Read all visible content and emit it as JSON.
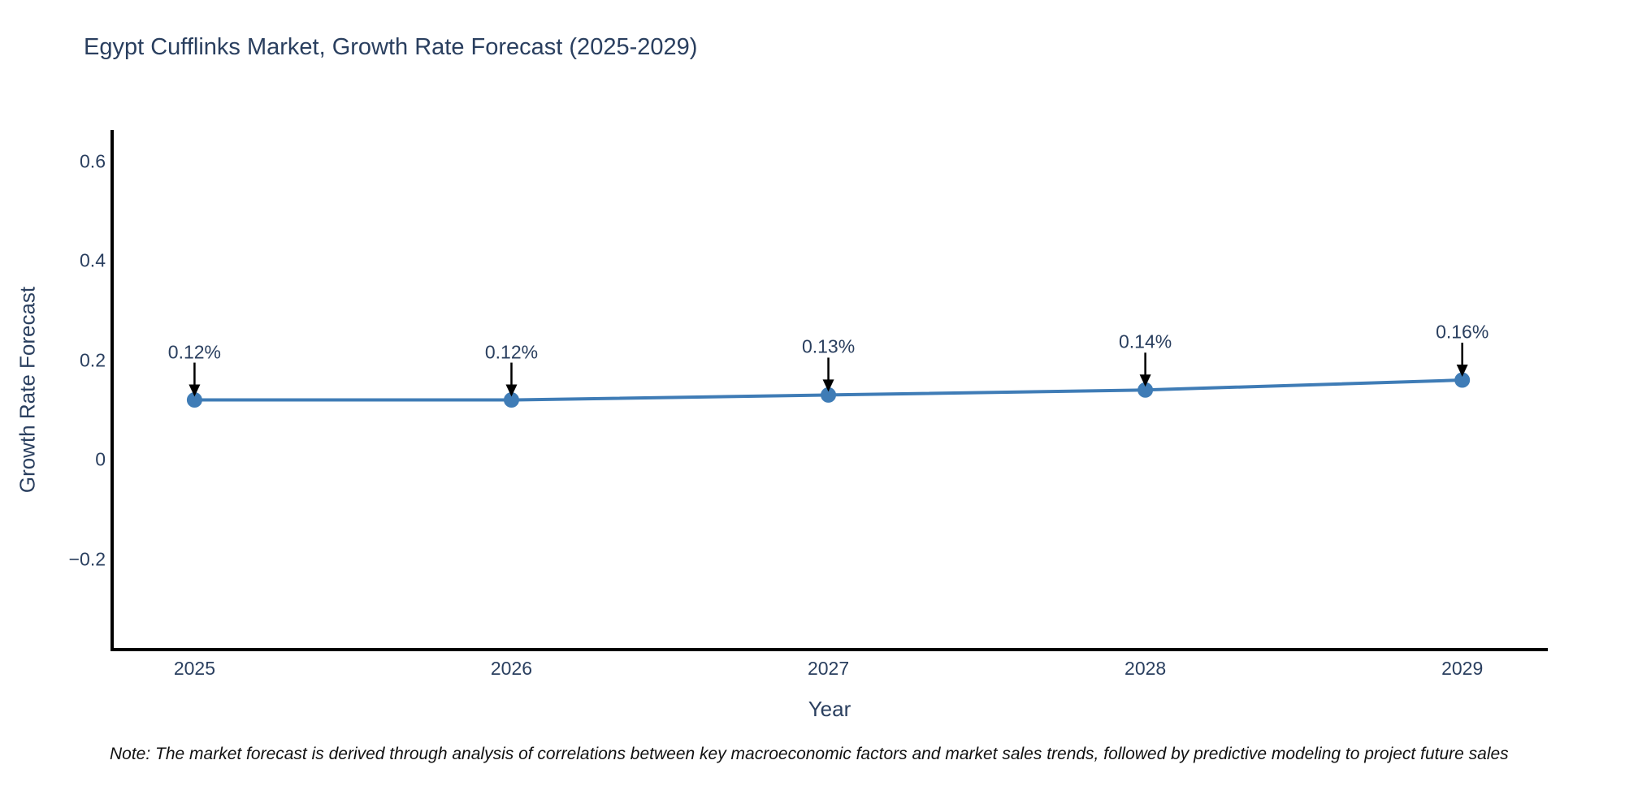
{
  "title": "Egypt Cufflinks Market, Growth Rate Forecast (2025-2029)",
  "note": "Note: The market forecast is derived through analysis of correlations between key macroeconomic factors and market sales trends, followed by predictive modeling to project future sales",
  "chart_data": {
    "type": "line",
    "title": "Egypt Cufflinks Market, Growth Rate Forecast (2025-2029)",
    "xlabel": "Year",
    "ylabel": "Growth Rate Forecast",
    "x": [
      2025,
      2026,
      2027,
      2028,
      2029
    ],
    "series": [
      {
        "name": "Growth Rate Forecast",
        "values": [
          0.12,
          0.12,
          0.13,
          0.14,
          0.16
        ],
        "point_labels": [
          "0.12%",
          "0.12%",
          "0.13%",
          "0.14%",
          "0.16%"
        ]
      }
    ],
    "xticks": [
      "2025",
      "2026",
      "2027",
      "2028",
      "2029"
    ],
    "yticks": [
      0.6,
      0.4,
      0.2,
      0,
      -0.2
    ],
    "ytick_labels": [
      "0.6",
      "0.4",
      "0.2",
      "0",
      "−0.2"
    ],
    "xlim": [
      2024.74,
      2029.27
    ],
    "ylim": [
      -0.382,
      0.663
    ],
    "grid": false,
    "legend_position": "none",
    "line_color": "#3f7cb6",
    "marker_color": "#3f7cb6",
    "axis_color": "#000000",
    "text_color": "#2a3f5f",
    "annotation_color": "#000000",
    "background_color": "#ffffff"
  }
}
